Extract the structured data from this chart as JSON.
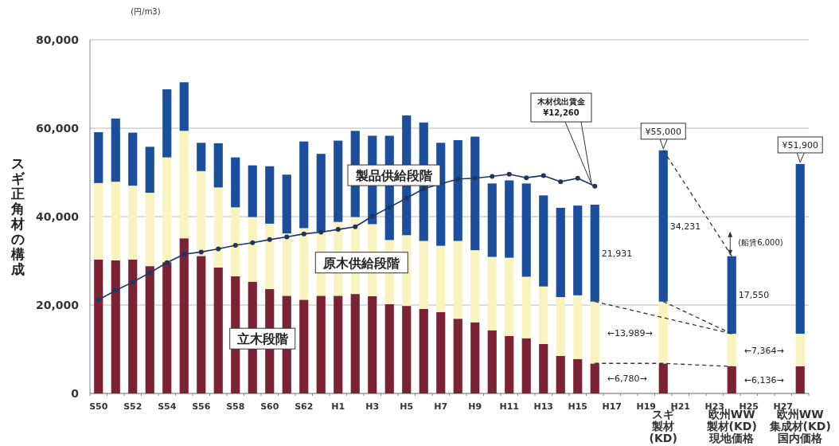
{
  "chart_data": {
    "type": "bar",
    "stacked": true,
    "ylabel": "スギ正角材の構成",
    "ylim": [
      0,
      80000
    ],
    "yticks": [
      0,
      {
        "value": 20000,
        "label": "20,000"
      },
      {
        "value": 40000,
        "label": "40,000"
      },
      {
        "value": 60000,
        "label": "60,000"
      },
      {
        "value": 80000,
        "label": "80,000"
      }
    ],
    "grid": "y",
    "categories": [
      "S50",
      null,
      "S52",
      null,
      "S54",
      null,
      "S56",
      null,
      "S58",
      null,
      "S60",
      null,
      "S62",
      null,
      "H1",
      null,
      "H3",
      null,
      "H5",
      null,
      "H7",
      null,
      "H9",
      null,
      "H11",
      null,
      "H13",
      null,
      "H15",
      null,
      "H17",
      null,
      "H19",
      "スギ製材(KD)",
      "H21",
      null,
      "H23",
      "欧州WW製材(KD)現地価格",
      "H25",
      null,
      "H27",
      "欧州WW集成材(KD)国内価格"
    ],
    "series": [
      {
        "name": "立木段階",
        "color": "#7b2335",
        "values": [
          30300,
          30100,
          30300,
          28800,
          29700,
          35100,
          31100,
          28500,
          26500,
          25300,
          23600,
          22100,
          21200,
          22100,
          22100,
          22500,
          22000,
          20200,
          19800,
          19100,
          18400,
          16900,
          16100,
          14300,
          13000,
          12500,
          11200,
          8500,
          7800,
          6780,
          null,
          null,
          null,
          6780,
          null,
          null,
          null,
          6136,
          null,
          null,
          null,
          6136
        ]
      },
      {
        "name": "原木供給段階",
        "color": "#f8f3bf",
        "values": [
          17300,
          17800,
          16700,
          16600,
          23700,
          24300,
          19200,
          18100,
          15600,
          14600,
          14800,
          14100,
          16200,
          14400,
          16700,
          17400,
          16300,
          14500,
          16000,
          15400,
          15000,
          17600,
          16300,
          16600,
          17700,
          13900,
          13000,
          13300,
          14400,
          13989,
          null,
          null,
          null,
          13989,
          null,
          null,
          null,
          7364,
          null,
          null,
          null,
          7364
        ]
      },
      {
        "name": "製品供給段階",
        "color": "#1b4f9c",
        "values": [
          11500,
          14300,
          12000,
          10400,
          15400,
          11000,
          6400,
          10000,
          11300,
          11700,
          13000,
          13300,
          19600,
          17700,
          18400,
          19500,
          20000,
          23600,
          27100,
          26800,
          23300,
          22800,
          25700,
          16600,
          17500,
          21100,
          20600,
          20200,
          20300,
          21931,
          null,
          null,
          null,
          34231,
          null,
          null,
          null,
          17550,
          null,
          null,
          null,
          38400
        ]
      },
      {
        "type": "line",
        "color": "#1f3560",
        "marker": "circle",
        "line_style": "solid",
        "values": [
          21200,
          23300,
          25200,
          27300,
          29600,
          31500,
          32000,
          32700,
          33500,
          34100,
          34800,
          35400,
          36100,
          36500,
          37100,
          37700,
          40100,
          42100,
          44200,
          46300,
          null,
          48500,
          48700,
          49100,
          49600,
          48800,
          49300,
          47900,
          48700,
          46900,
          null,
          null,
          null,
          null,
          null,
          null,
          null,
          null,
          null,
          null,
          null,
          null
        ]
      },
      {
        "type": "line",
        "color": "#333333",
        "marker": "none",
        "line_style": "dashed",
        "values": [
          null,
          null,
          null,
          null,
          null,
          null,
          null,
          null,
          null,
          null,
          null,
          null,
          null,
          null,
          null,
          null,
          null,
          null,
          null,
          null,
          null,
          null,
          null,
          null,
          null,
          null,
          null,
          null,
          null,
          20800,
          null,
          null,
          null,
          null,
          null,
          null,
          null,
          13500,
          null,
          null,
          null,
          null
        ]
      },
      {
        "type": "line",
        "color": "#333333",
        "marker": "none",
        "line_style": "dashed",
        "values": [
          null,
          null,
          null,
          null,
          null,
          null,
          null,
          null,
          null,
          null,
          null,
          null,
          null,
          null,
          null,
          null,
          null,
          null,
          null,
          null,
          null,
          null,
          null,
          null,
          null,
          null,
          null,
          null,
          null,
          null,
          null,
          null,
          null,
          20800,
          null,
          null,
          null,
          13500,
          null,
          null,
          null,
          null
        ]
      },
      {
        "type": "line",
        "color": "#333333",
        "marker": "none",
        "line_style": "dashed",
        "values": [
          null,
          null,
          null,
          null,
          null,
          null,
          null,
          null,
          null,
          null,
          null,
          null,
          null,
          null,
          null,
          null,
          null,
          null,
          null,
          null,
          null,
          null,
          null,
          null,
          null,
          null,
          null,
          null,
          null,
          6800,
          null,
          null,
          null,
          6800,
          null,
          null,
          null,
          6100,
          null,
          null,
          null,
          null
        ]
      },
      {
        "type": "line",
        "color": "#333333",
        "marker": "none",
        "line_style": "dashed",
        "values": [
          null,
          null,
          null,
          null,
          null,
          null,
          null,
          null,
          null,
          null,
          null,
          null,
          null,
          null,
          null,
          null,
          null,
          null,
          null,
          null,
          null,
          null,
          null,
          null,
          null,
          null,
          null,
          null,
          null,
          null,
          null,
          null,
          null,
          55000,
          null,
          null,
          null,
          31100,
          null,
          null,
          null,
          null
        ]
      }
    ],
    "totals": [
      null,
      null,
      null,
      null,
      null,
      null,
      null,
      null,
      null,
      null,
      null,
      null,
      null,
      null,
      null,
      null,
      null,
      null,
      null,
      null,
      null,
      null,
      null,
      null,
      null,
      null,
      null,
      null,
      null,
      null,
      null,
      null,
      null,
      "¥55,000",
      null,
      null,
      null,
      null,
      null,
      null,
      null,
      "¥51,900"
    ],
    "annotations": [
      "(円/m3)",
      "木材伐出賃金\n¥12,260",
      "(船賃6,000)",
      "21,931",
      "34,231",
      "17,550",
      "←13,989→",
      "←6,780→",
      "←7,364→",
      "←6,136→"
    ]
  }
}
